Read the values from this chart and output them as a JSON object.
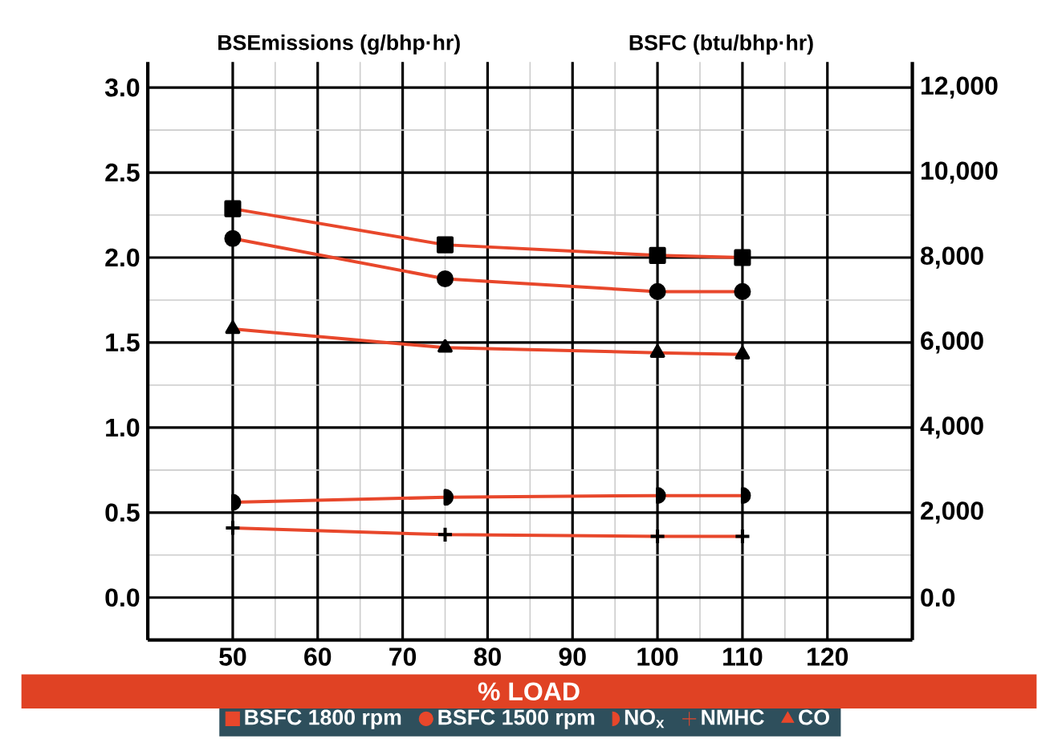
{
  "chart_data": {
    "type": "line",
    "xlabel": "% LOAD",
    "ylabel": "BSEmissions (g/bhp·hr)",
    "y2label": "BSFC (btu/bhp·hr)",
    "x": [
      50,
      75,
      100,
      110
    ],
    "series": [
      {
        "name": "BSFC 1800 rpm",
        "color": "#e8472b",
        "axis": "y2",
        "marker": "square",
        "values": [
          9150,
          8300,
          8050,
          8000
        ]
      },
      {
        "name": "BSFC 1500 rpm",
        "color": "#e8472b",
        "axis": "y2",
        "marker": "circle",
        "values": [
          8450,
          7500,
          7200,
          7200
        ]
      },
      {
        "name": "NO$_{x}$",
        "color": "#e8472b",
        "axis": "y",
        "marker": "halfcircle",
        "values": [
          0.56,
          0.59,
          0.6,
          0.6
        ]
      },
      {
        "name": "NMHC",
        "color": "#e8472b",
        "axis": "y",
        "marker": "cross",
        "values": [
          0.41,
          0.37,
          0.36,
          0.36
        ]
      },
      {
        "name": "CO",
        "color": "#e8472b",
        "axis": "y",
        "marker": "triangle",
        "values": [
          1.58,
          1.47,
          1.44,
          1.43
        ]
      }
    ],
    "xlim": [
      40,
      130
    ],
    "xticks": [
      50,
      60,
      70,
      80,
      90,
      100,
      110,
      120
    ],
    "ylim": [
      -0.25,
      3.15
    ],
    "yticks": [
      {
        "value": 0,
        "label": "0.0"
      },
      {
        "value": 0.5,
        "label": "0.5"
      },
      {
        "value": 1,
        "label": "1.0"
      },
      {
        "value": 1.5,
        "label": "1.5"
      },
      {
        "value": 2,
        "label": "2.0"
      },
      {
        "value": 2.5,
        "label": "2.5"
      },
      {
        "value": 3,
        "label": "3.0"
      }
    ],
    "y2lim": [
      -1000,
      12600
    ],
    "y2ticks": [
      {
        "value": 0,
        "label": "0.0"
      },
      {
        "value": 2000,
        "label": "2,000"
      },
      {
        "value": 4000,
        "label": "4,000"
      },
      {
        "value": 6000,
        "label": "6,000"
      },
      {
        "value": 8000,
        "label": "8,000"
      },
      {
        "value": 10000,
        "label": "10,000"
      },
      {
        "value": 12000,
        "label": "12,000"
      }
    ],
    "grid": true,
    "legend": "bottom",
    "line_style": "solid"
  }
}
